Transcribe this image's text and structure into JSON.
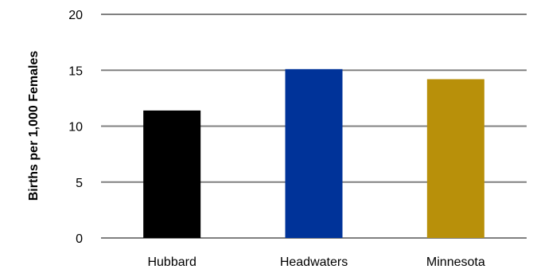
{
  "chart_data": {
    "type": "bar",
    "categories": [
      "Hubbard",
      "Headwaters",
      "Minnesota"
    ],
    "values": [
      11.4,
      15.1,
      14.2
    ],
    "colors": [
      "#000000",
      "#003399",
      "#b8900a"
    ],
    "xlabel": "",
    "ylabel": "Births per 1,000 Females",
    "ylim": [
      0,
      20
    ],
    "yticks": [
      0,
      5,
      10,
      15,
      20
    ],
    "grid": true,
    "legend": "none"
  }
}
